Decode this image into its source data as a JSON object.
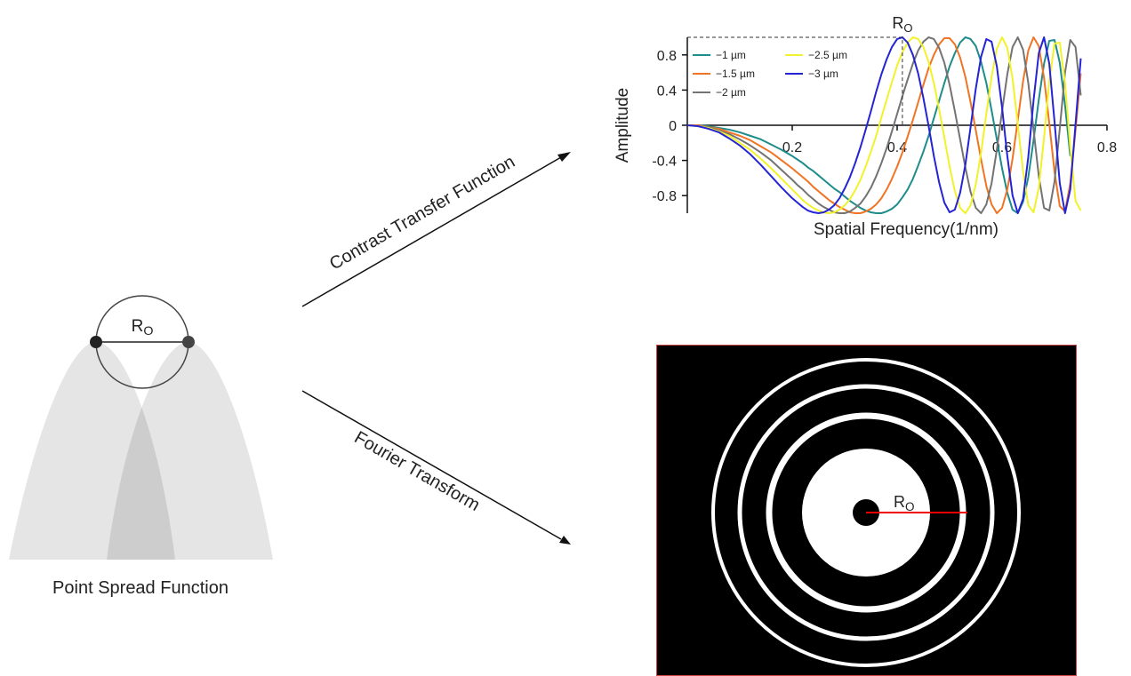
{
  "chart_data": {
    "type": "line",
    "x_label": "Spatial Frequency(1/nm)",
    "y_label": "Amplitude",
    "x": [
      0,
      0.02,
      0.04,
      0.06,
      0.08,
      0.1,
      0.12,
      0.14,
      0.16,
      0.18,
      0.2,
      0.21,
      0.22,
      0.23,
      0.24,
      0.25,
      0.26,
      0.27,
      0.28,
      0.29,
      0.3,
      0.31,
      0.32,
      0.33,
      0.34,
      0.35,
      0.36,
      0.37,
      0.38,
      0.39,
      0.4,
      0.41,
      0.42,
      0.43,
      0.44,
      0.45,
      0.46,
      0.47,
      0.48,
      0.49,
      0.5,
      0.51,
      0.52,
      0.53,
      0.54,
      0.55,
      0.56,
      0.57,
      0.58,
      0.59,
      0.6,
      0.61,
      0.62,
      0.63,
      0.64,
      0.65,
      0.66,
      0.67,
      0.68,
      0.69,
      0.7,
      0.71,
      0.72,
      0.73,
      0.74,
      0.75
    ],
    "series": [
      {
        "name": "−1 µm",
        "color": "#1f8c8c",
        "values": [
          0,
          0,
          -0.01,
          -0.03,
          -0.05,
          -0.08,
          -0.12,
          -0.16,
          -0.22,
          -0.28,
          -0.35,
          -0.39,
          -0.43,
          -0.48,
          -0.52,
          -0.57,
          -0.62,
          -0.67,
          -0.72,
          -0.76,
          -0.81,
          -0.86,
          -0.9,
          -0.94,
          -0.97,
          -0.99,
          -1,
          -1,
          -0.98,
          -0.95,
          -0.9,
          -0.82,
          -0.73,
          -0.61,
          -0.46,
          -0.3,
          -0.12,
          0.08,
          0.28,
          0.48,
          0.67,
          0.82,
          0.94,
          1,
          0.98,
          0.9,
          0.72,
          0.48,
          0.17,
          -0.16,
          -0.49,
          -0.77,
          -0.96,
          -1,
          -0.87,
          -0.59,
          -0.17,
          0.29,
          0.7,
          0.96,
          0.97,
          0.71,
          0.23,
          -0.35,
          null,
          null
        ]
      },
      {
        "name": "−1.5 µm",
        "color": "#f07424",
        "values": [
          0,
          0,
          -0.02,
          -0.04,
          -0.08,
          -0.12,
          -0.17,
          -0.24,
          -0.31,
          -0.4,
          -0.49,
          -0.54,
          -0.59,
          -0.64,
          -0.7,
          -0.75,
          -0.8,
          -0.85,
          -0.89,
          -0.93,
          -0.96,
          -0.99,
          -1,
          -1,
          -0.98,
          -0.95,
          -0.9,
          -0.83,
          -0.73,
          -0.61,
          -0.47,
          -0.31,
          -0.13,
          0.06,
          0.26,
          0.46,
          0.65,
          0.8,
          0.92,
          0.99,
          0.99,
          0.92,
          0.77,
          0.55,
          0.26,
          -0.06,
          -0.39,
          -0.69,
          -0.9,
          -1,
          -0.94,
          -0.73,
          -0.38,
          0.06,
          0.5,
          0.85,
          1,
          0.9,
          0.54,
          0.02,
          -0.53,
          -0.92,
          -0.98,
          -0.66,
          -0.06,
          0.59
        ]
      },
      {
        "name": "−2 µm",
        "color": "#737373",
        "values": [
          0,
          -0.01,
          -0.02,
          -0.06,
          -0.1,
          -0.16,
          -0.23,
          -0.31,
          -0.4,
          -0.51,
          -0.62,
          -0.68,
          -0.73,
          -0.79,
          -0.84,
          -0.89,
          -0.93,
          -0.96,
          -0.99,
          -1,
          -1,
          -0.98,
          -0.94,
          -0.89,
          -0.81,
          -0.71,
          -0.58,
          -0.43,
          -0.26,
          -0.07,
          0.13,
          0.33,
          0.52,
          0.7,
          0.85,
          0.95,
          1,
          0.98,
          0.88,
          0.71,
          0.46,
          0.16,
          -0.16,
          -0.48,
          -0.76,
          -0.94,
          -1,
          -0.9,
          -0.66,
          -0.28,
          0.16,
          0.58,
          0.89,
          1,
          0.86,
          0.48,
          -0.05,
          -0.58,
          -0.94,
          -0.97,
          -0.64,
          -0.04,
          0.6,
          0.97,
          0.89,
          0.34
        ]
      },
      {
        "name": "−2.5 µm",
        "color": "#f2f22c",
        "values": [
          0,
          -0.01,
          -0.03,
          -0.07,
          -0.12,
          -0.2,
          -0.28,
          -0.38,
          -0.49,
          -0.61,
          -0.73,
          -0.79,
          -0.85,
          -0.9,
          -0.94,
          -0.97,
          -0.99,
          -1,
          -0.99,
          -0.96,
          -0.91,
          -0.84,
          -0.74,
          -0.62,
          -0.47,
          -0.3,
          -0.12,
          0.09,
          0.29,
          0.49,
          0.68,
          0.83,
          0.94,
          1,
          0.98,
          0.89,
          0.72,
          0.48,
          0.18,
          -0.14,
          -0.47,
          -0.75,
          -0.94,
          -1,
          -0.91,
          -0.67,
          -0.31,
          0.13,
          0.55,
          0.87,
          1,
          0.88,
          0.53,
          0.01,
          -0.52,
          -0.91,
          -0.99,
          -0.71,
          -0.14,
          0.5,
          0.93,
          0.94,
          0.48,
          -0.25,
          -0.86,
          -0.97
        ]
      },
      {
        "name": "−3 µm",
        "color": "#2424d4",
        "values": [
          0,
          -0.01,
          -0.04,
          -0.08,
          -0.15,
          -0.23,
          -0.33,
          -0.45,
          -0.58,
          -0.71,
          -0.83,
          -0.88,
          -0.93,
          -0.97,
          -0.99,
          -1,
          -0.99,
          -0.96,
          -0.91,
          -0.83,
          -0.72,
          -0.59,
          -0.43,
          -0.25,
          -0.05,
          0.16,
          0.38,
          0.58,
          0.75,
          0.89,
          0.98,
          1,
          0.94,
          0.8,
          0.59,
          0.31,
          -0.01,
          -0.35,
          -0.65,
          -0.88,
          -0.99,
          -0.96,
          -0.77,
          -0.45,
          -0.02,
          0.42,
          0.78,
          0.98,
          0.95,
          0.67,
          0.2,
          -0.35,
          -0.8,
          -1,
          -0.84,
          -0.36,
          0.28,
          0.82,
          1,
          0.7,
          0.04,
          -0.66,
          -1,
          -0.73,
          0.01,
          0.76
        ]
      }
    ],
    "xlim": [
      0,
      0.8
    ],
    "xticks": [
      0.2,
      0.4,
      0.6,
      0.8
    ],
    "ylim": [
      -1,
      1
    ],
    "yticks": [
      0.8,
      0.4,
      0,
      -0.4,
      -0.8
    ],
    "legend": "upper left",
    "ro_marker": {
      "label": "R",
      "label_sub": "O",
      "x": 0.41
    }
  },
  "psf": {
    "label": "Point Spread Function",
    "radius_label": "R",
    "radius_sub": "O"
  },
  "arrows": [
    {
      "label": "Contrast Transfer Function"
    },
    {
      "label": "Fourier Transform"
    }
  ],
  "fourier": {
    "radius_label": "R",
    "radius_sub": "O"
  }
}
